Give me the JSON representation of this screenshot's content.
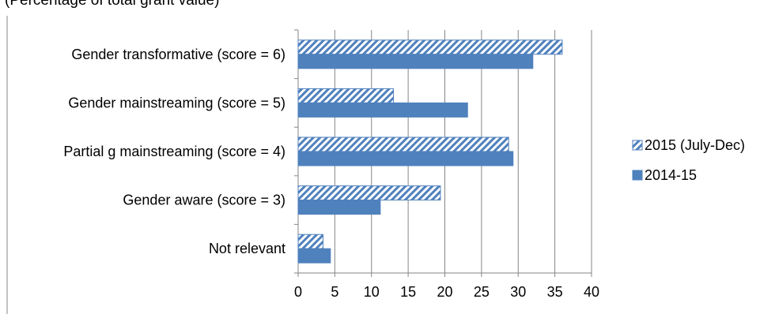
{
  "caption": "(Percentage of total grant value)",
  "chart_data": {
    "type": "bar",
    "orientation": "horizontal",
    "title": "",
    "xlabel": "",
    "ylabel": "",
    "categories": [
      "Gender transformative (score = 6)",
      "Gender mainstreaming (score = 5)",
      "Partial g mainstreaming (score = 4)",
      "Gender aware (score = 3)",
      "Not relevant"
    ],
    "series": [
      {
        "name": "2015 (July-Dec)",
        "pattern": "hatched",
        "color": "#4f81bd",
        "values": [
          36,
          13,
          28.7,
          19.4,
          3.4
        ]
      },
      {
        "name": "2014-15",
        "pattern": "solid",
        "color": "#4f81bd",
        "values": [
          32,
          23.1,
          29.3,
          11.2,
          4.4
        ]
      }
    ],
    "xlim": [
      0,
      40
    ],
    "xticks": [
      "0",
      "5",
      "10",
      "15",
      "20",
      "25",
      "30",
      "35",
      "40"
    ],
    "grid": true,
    "legend_position": "right"
  }
}
